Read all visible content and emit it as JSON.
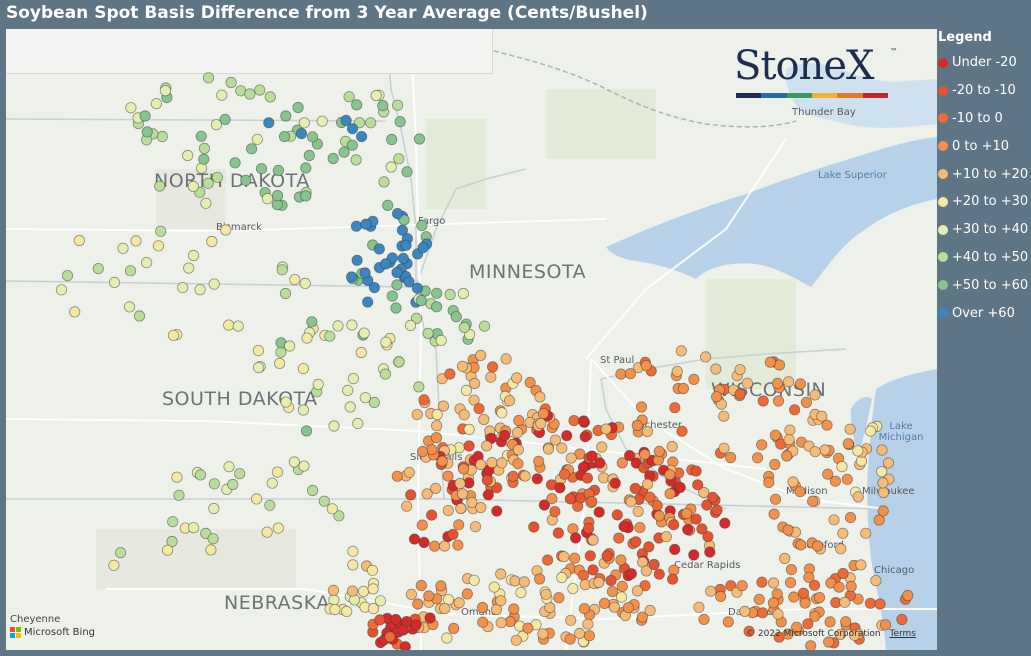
{
  "title": "Soybean Spot Basis Difference from 3 Year Average (Cents/Bushel)",
  "legend": {
    "title": "Legend",
    "items": [
      {
        "label": "Under -20",
        "color": "#d62a2a"
      },
      {
        "label": "-20 to -10",
        "color": "#e8532f"
      },
      {
        "label": "-10 to 0",
        "color": "#ee6b37"
      },
      {
        "label": "0 to +10",
        "color": "#f39049"
      },
      {
        "label": "+10 to +20",
        "color": "#f7bb78"
      },
      {
        "label": "+20 to +30",
        "color": "#f4e8a2"
      },
      {
        "label": "+30 to +40",
        "color": "#e3eeaf"
      },
      {
        "label": "+40 to +50",
        "color": "#b9de9a"
      },
      {
        "label": "+50 to +60",
        "color": "#86c58e"
      },
      {
        "label": "Over +60",
        "color": "#3a86c0"
      }
    ]
  },
  "map": {
    "states": [
      {
        "name": "NORTH DAKOTA"
      },
      {
        "name": "MINNESOTA"
      },
      {
        "name": "SOUTH DAKOTA"
      },
      {
        "name": "WISCONSIN"
      },
      {
        "name": "NEBRASKA"
      }
    ],
    "cities": [
      "Bismarck",
      "Fargo",
      "St Paul",
      "Rochester",
      "Madison",
      "Milwaukee",
      "Rockford",
      "Chicago",
      "Cedar Rapids",
      "Omaha",
      "Sioux Falls",
      "Thunder Bay",
      "Davenport"
    ],
    "water": [
      "Lake Superior",
      "Lake Michigan"
    ]
  },
  "logo": {
    "text": "StoneX",
    "tm": "™",
    "bar_colors": [
      "#1f2d52",
      "#2b6aa8",
      "#3c9a5a",
      "#f2b233",
      "#e07b2c",
      "#c0272d"
    ]
  },
  "attribution": {
    "cheyenne": "Cheyenne",
    "bing": "Microsoft Bing",
    "copyright": "© 2022 Microsoft Corporation",
    "terms": "Terms"
  }
}
